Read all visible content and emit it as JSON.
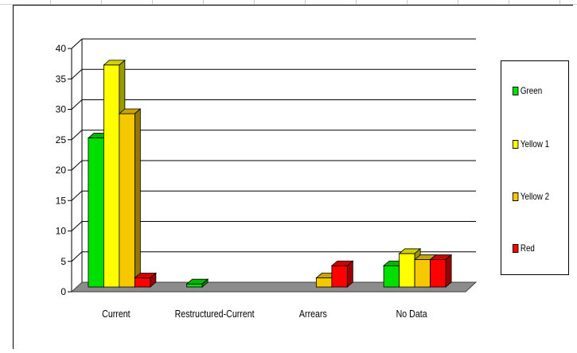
{
  "chart_data": {
    "type": "bar",
    "categories": [
      "Current",
      "Restructured-Current",
      "Arrears",
      "No Data"
    ],
    "series": [
      {
        "name": "Green",
        "color": "#00e000",
        "values": [
          24.5,
          0.5,
          0,
          3.5
        ]
      },
      {
        "name": "Yellow 1",
        "color": "#ffff00",
        "values": [
          36.5,
          0,
          0,
          5.5
        ]
      },
      {
        "name": "Yellow 2",
        "color": "#f5c800",
        "values": [
          28.5,
          0,
          1.5,
          4.5
        ]
      },
      {
        "name": "Red",
        "color": "#ff0000",
        "values": [
          1.5,
          0,
          3.5,
          4.5
        ]
      }
    ],
    "yticks": [
      "0",
      "5",
      "10",
      "15",
      "20",
      "25",
      "30",
      "35",
      "40"
    ],
    "ylim": [
      0,
      40
    ],
    "grid": true,
    "legend_position": "right",
    "style": "3d-clustered-column",
    "title": "",
    "xlabel": "",
    "ylabel": ""
  }
}
